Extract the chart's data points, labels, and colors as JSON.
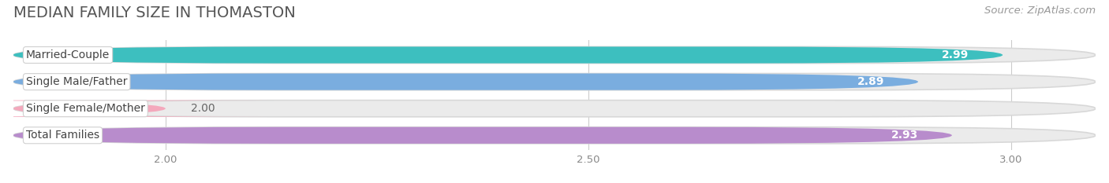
{
  "title": "MEDIAN FAMILY SIZE IN THOMASTON",
  "source": "Source: ZipAtlas.com",
  "categories": [
    "Married-Couple",
    "Single Male/Father",
    "Single Female/Mother",
    "Total Families"
  ],
  "values": [
    2.99,
    2.89,
    2.0,
    2.93
  ],
  "bar_colors": [
    "#3dbfbf",
    "#7aaddf",
    "#f4a8bc",
    "#b88ccc"
  ],
  "xlim": [
    1.82,
    3.1
  ],
  "xticks": [
    2.0,
    2.5,
    3.0
  ],
  "bar_height": 0.62,
  "background_color": "#ffffff",
  "bar_bg_color": "#ebebeb",
  "title_fontsize": 14,
  "label_fontsize": 10,
  "value_fontsize": 10,
  "source_fontsize": 9.5,
  "grid_color": "#cccccc"
}
